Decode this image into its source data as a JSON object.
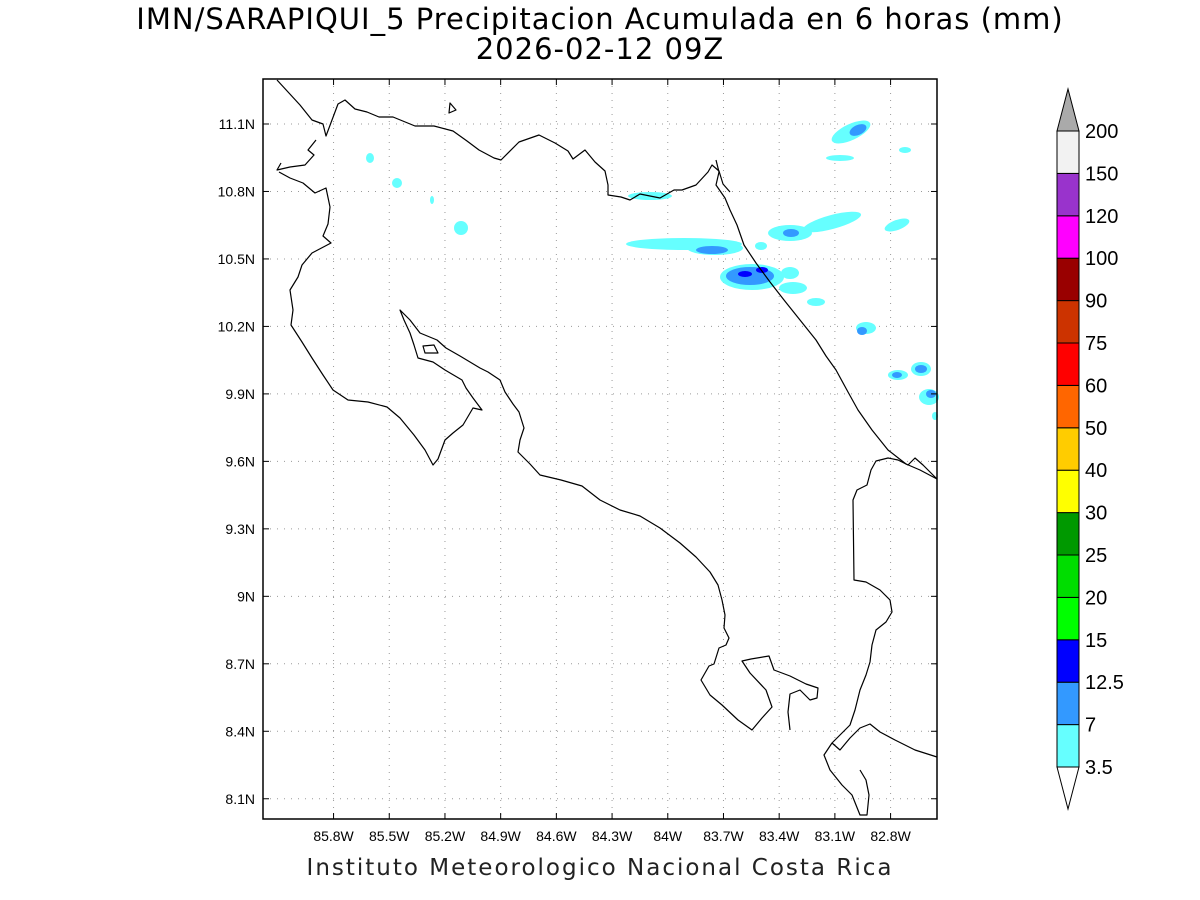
{
  "title_line1": "IMN/SARAPIQUI_5 Precipitacion Acumulada en 6 horas (mm)",
  "title_line2": "2026-02-12 09Z",
  "footer": "Instituto Meteorologico Nacional Costa Rica",
  "map": {
    "lon_range": [
      -86.18,
      -82.55
    ],
    "lat_range": [
      8.01,
      11.3
    ],
    "lon_ticks": [
      {
        "value": -85.8,
        "label": "85.8W"
      },
      {
        "value": -85.5,
        "label": "85.5W"
      },
      {
        "value": -85.2,
        "label": "85.2W"
      },
      {
        "value": -84.9,
        "label": "84.9W"
      },
      {
        "value": -84.6,
        "label": "84.6W"
      },
      {
        "value": -84.3,
        "label": "84.3W"
      },
      {
        "value": -84.0,
        "label": "84W"
      },
      {
        "value": -83.7,
        "label": "83.7W"
      },
      {
        "value": -83.4,
        "label": "83.4W"
      },
      {
        "value": -83.1,
        "label": "83.1W"
      },
      {
        "value": -82.8,
        "label": "82.8W"
      }
    ],
    "lat_ticks": [
      {
        "value": 11.1,
        "label": "11.1N"
      },
      {
        "value": 10.8,
        "label": "10.8N"
      },
      {
        "value": 10.5,
        "label": "10.5N"
      },
      {
        "value": 10.2,
        "label": "10.2N"
      },
      {
        "value": 9.9,
        "label": "9.9N"
      },
      {
        "value": 9.6,
        "label": "9.6N"
      },
      {
        "value": 9.3,
        "label": "9.3N"
      },
      {
        "value": 9.0,
        "label": "9N"
      },
      {
        "value": 8.7,
        "label": "8.7N"
      },
      {
        "value": 8.4,
        "label": "8.4N"
      },
      {
        "value": 8.1,
        "label": "8.1N"
      }
    ],
    "grid": true
  },
  "colorbar": {
    "levels": [
      {
        "label": "3.5",
        "color": "#66ffff"
      },
      {
        "label": "7",
        "color": "#3399ff"
      },
      {
        "label": "12.5",
        "color": "#0000ff"
      },
      {
        "label": "15",
        "color": "#00ff00"
      },
      {
        "label": "20",
        "color": "#00dd00"
      },
      {
        "label": "25",
        "color": "#009900"
      },
      {
        "label": "30",
        "color": "#ffff00"
      },
      {
        "label": "40",
        "color": "#ffcc00"
      },
      {
        "label": "50",
        "color": "#ff6600"
      },
      {
        "label": "60",
        "color": "#ff0000"
      },
      {
        "label": "75",
        "color": "#cc3300"
      },
      {
        "label": "90",
        "color": "#990000"
      },
      {
        "label": "100",
        "color": "#ff00ff"
      },
      {
        "label": "120",
        "color": "#9933cc"
      },
      {
        "label": "150",
        "color": "#f2f2f2"
      },
      {
        "label": "200",
        "color": "#aaaaaa"
      }
    ]
  }
}
